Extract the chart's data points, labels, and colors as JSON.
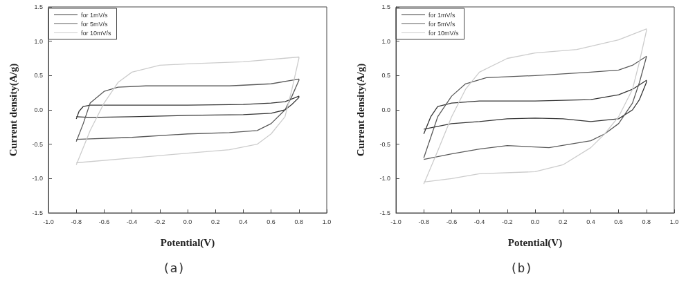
{
  "chart_data": [
    {
      "type": "line",
      "xlabel": "Potential(V)",
      "ylabel": "Current density(A/g)",
      "annotations": [
        "(a)"
      ],
      "xlim": [
        -1.0,
        1.0
      ],
      "xticks": [
        {
          "value": -1.0,
          "label": "-1.0"
        },
        {
          "value": -0.8,
          "label": "-0.8"
        },
        {
          "value": -0.6,
          "label": "-0.6"
        },
        {
          "value": -0.4,
          "label": "-0.4"
        },
        {
          "value": -0.2,
          "label": "-0.2"
        },
        {
          "value": 0.0,
          "label": "0.0"
        },
        {
          "value": 0.2,
          "label": "0.2"
        },
        {
          "value": 0.4,
          "label": "0.4"
        },
        {
          "value": 0.6,
          "label": "0.6"
        },
        {
          "value": 0.8,
          "label": "0.8"
        },
        {
          "value": 1.0,
          "label": "1.0"
        }
      ],
      "ylim": [
        -1.5,
        1.5
      ],
      "yticks": [
        {
          "value": -1.5,
          "label": "-1.5"
        },
        {
          "value": -1.0,
          "label": "-1.0"
        },
        {
          "value": -0.5,
          "label": "-0.5"
        },
        {
          "value": 0.0,
          "label": "0.0"
        },
        {
          "value": 0.5,
          "label": "0.5"
        },
        {
          "value": 1.0,
          "label": "1.0"
        },
        {
          "value": 1.5,
          "label": "1.5"
        }
      ],
      "grid": false,
      "legend": "top left",
      "marker": "none",
      "series": [
        {
          "name": "for 1mV/s",
          "color": "#333333",
          "x": [
            -0.8,
            -0.78,
            -0.75,
            -0.7,
            -0.4,
            0,
            0.4,
            0.6,
            0.7,
            0.8,
            0.8,
            0.75,
            0.7,
            0.6,
            0.4,
            0,
            -0.4,
            -0.7,
            -0.8
          ],
          "values": [
            -0.13,
            -0.02,
            0.05,
            0.07,
            0.07,
            0.07,
            0.08,
            0.1,
            0.12,
            0.2,
            0.18,
            0.08,
            0.0,
            -0.05,
            -0.07,
            -0.08,
            -0.1,
            -0.11,
            -0.1
          ]
        },
        {
          "name": "for 5mV/s",
          "color": "#5a5a5a",
          "x": [
            -0.8,
            -0.75,
            -0.7,
            -0.6,
            -0.5,
            -0.3,
            0,
            0.3,
            0.6,
            0.8,
            0.8,
            0.75,
            0.7,
            0.6,
            0.5,
            0.3,
            0,
            -0.4,
            -0.8
          ],
          "values": [
            -0.46,
            -0.2,
            0.1,
            0.27,
            0.33,
            0.35,
            0.35,
            0.35,
            0.38,
            0.45,
            0.43,
            0.2,
            0.0,
            -0.2,
            -0.3,
            -0.33,
            -0.35,
            -0.4,
            -0.43
          ]
        },
        {
          "name": "for 10mV/s",
          "color": "#cccccc",
          "x": [
            -0.8,
            -0.7,
            -0.6,
            -0.5,
            -0.4,
            -0.2,
            0,
            0.4,
            0.8,
            0.8,
            0.75,
            0.7,
            0.6,
            0.5,
            0.3,
            0,
            -0.4,
            -0.8
          ],
          "values": [
            -0.8,
            -0.3,
            0.1,
            0.4,
            0.55,
            0.65,
            0.67,
            0.7,
            0.77,
            0.75,
            0.3,
            -0.1,
            -0.35,
            -0.5,
            -0.58,
            -0.63,
            -0.7,
            -0.77
          ]
        }
      ]
    },
    {
      "type": "line",
      "xlabel": "Potential(V)",
      "ylabel": "Current density(A/g)",
      "annotations": [
        "(b)"
      ],
      "xlim": [
        -1.0,
        1.0
      ],
      "xticks": [
        {
          "value": -1.0,
          "label": "-1.0"
        },
        {
          "value": -0.8,
          "label": "-0.8"
        },
        {
          "value": -0.6,
          "label": "-0.6"
        },
        {
          "value": -0.4,
          "label": "-0.4"
        },
        {
          "value": -0.2,
          "label": "-0.2"
        },
        {
          "value": 0.0,
          "label": "0.0"
        },
        {
          "value": 0.2,
          "label": "0.2"
        },
        {
          "value": 0.4,
          "label": "0.4"
        },
        {
          "value": 0.6,
          "label": "0.6"
        },
        {
          "value": 0.8,
          "label": "0.8"
        },
        {
          "value": 1.0,
          "label": "1.0"
        }
      ],
      "ylim": [
        -1.5,
        1.5
      ],
      "yticks": [
        {
          "value": -1.5,
          "label": "-1.5"
        },
        {
          "value": -1.0,
          "label": "-1.0"
        },
        {
          "value": -0.5,
          "label": "-0.5"
        },
        {
          "value": 0.0,
          "label": "0.0"
        },
        {
          "value": 0.5,
          "label": "0.5"
        },
        {
          "value": 1.0,
          "label": "1.0"
        },
        {
          "value": 1.5,
          "label": "1.5"
        }
      ],
      "grid": false,
      "legend": "top left",
      "marker": "none",
      "series": [
        {
          "name": "for 1mV/s",
          "color": "#333333",
          "x": [
            -0.8,
            -0.78,
            -0.75,
            -0.7,
            -0.6,
            -0.4,
            0,
            0.4,
            0.6,
            0.7,
            0.8,
            0.8,
            0.75,
            0.7,
            0.6,
            0.4,
            0.2,
            0,
            -0.2,
            -0.4,
            -0.6,
            -0.8
          ],
          "values": [
            -0.35,
            -0.25,
            -0.1,
            0.05,
            0.1,
            0.13,
            0.13,
            0.15,
            0.22,
            0.3,
            0.43,
            0.4,
            0.15,
            0.0,
            -0.13,
            -0.17,
            -0.13,
            -0.12,
            -0.13,
            -0.17,
            -0.2,
            -0.28
          ]
        },
        {
          "name": "for 5mV/s",
          "color": "#5a5a5a",
          "x": [
            -0.8,
            -0.75,
            -0.7,
            -0.6,
            -0.5,
            -0.35,
            0,
            0.4,
            0.6,
            0.7,
            0.8,
            0.8,
            0.75,
            0.7,
            0.6,
            0.5,
            0.4,
            0.1,
            -0.2,
            -0.4,
            -0.6,
            -0.8
          ],
          "values": [
            -0.7,
            -0.4,
            -0.1,
            0.2,
            0.38,
            0.47,
            0.5,
            0.55,
            0.58,
            0.65,
            0.78,
            0.77,
            0.4,
            0.1,
            -0.2,
            -0.35,
            -0.45,
            -0.55,
            -0.52,
            -0.57,
            -0.64,
            -0.72
          ]
        },
        {
          "name": "for 10mV/s",
          "color": "#cccccc",
          "x": [
            -0.8,
            -0.7,
            -0.6,
            -0.5,
            -0.4,
            -0.2,
            0,
            0.3,
            0.6,
            0.8,
            0.8,
            0.75,
            0.7,
            0.6,
            0.5,
            0.4,
            0.2,
            0,
            -0.4,
            -0.6,
            -0.8
          ],
          "values": [
            -1.08,
            -0.6,
            -0.1,
            0.3,
            0.55,
            0.75,
            0.83,
            0.88,
            1.02,
            1.18,
            1.15,
            0.7,
            0.3,
            -0.1,
            -0.35,
            -0.55,
            -0.8,
            -0.9,
            -0.93,
            -1.0,
            -1.05
          ]
        }
      ]
    }
  ]
}
